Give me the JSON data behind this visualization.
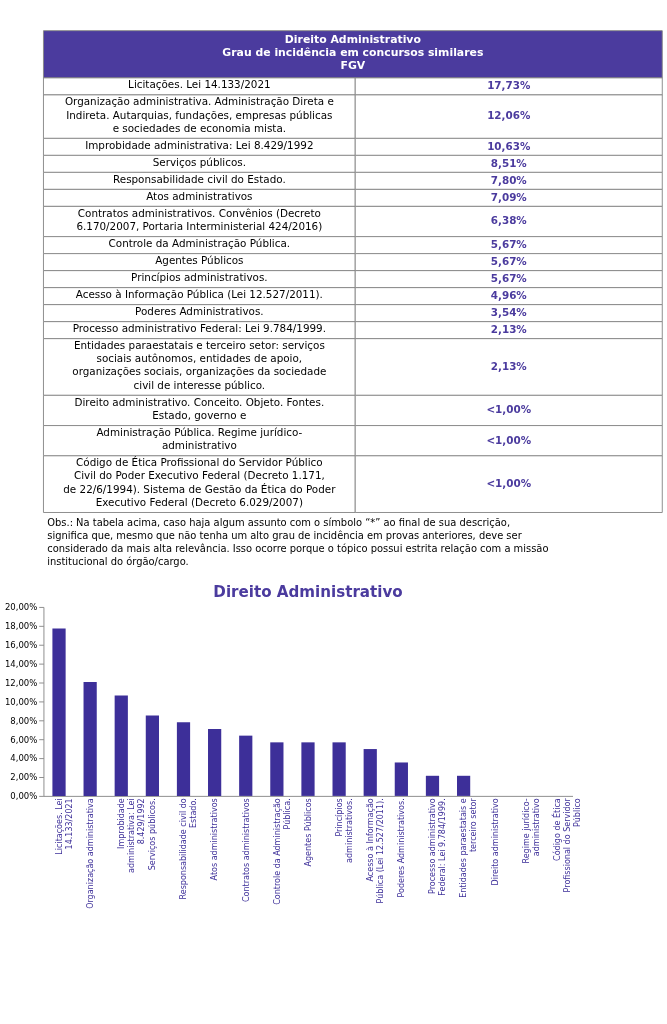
{
  "chart_data": [
    {
      "type": "other",
      "title": "Direito Administrativo",
      "subtitle": "Grau de incidência em concursos similares\nFGV",
      "color": "#4b3b9e",
      "categories": [
        "Licitações. Lei 14.133/2021",
        "Organização administrativa. Administração Direta e Indireta. Autarquias, fundações, empresas públicas e sociedades de economia mista.",
        "Improbidade administrativa: Lei 8.429/1992",
        "Serviços públicos.",
        "Responsabilidade civil do Estado.",
        "Atos administrativos",
        "Contratos administrativos. Convênios (Decreto 6.170/2007, Portaria Interministerial 424/2016)",
        "Controle da Administração Pública.",
        "Agentes Públicos",
        "Princípios administrativos.",
        "Acesso à Informação Pública (Lei 12.527/2011).",
        "Poderes Administrativos.",
        "Processo administrativo Federal: Lei 9.784/1999.",
        "Entidades paraestatais e terceiro setor: serviços sociais autônomos, entidades de apoio, organizações sociais, organizações da sociedade civil de interesse público.",
        "Direito administrativo. Conceito. Objeto. Fontes. Estado, governo e",
        "Administração Pública. Regime jurídico-administrativo",
        "Código de Ética Profissional do Servidor Público Civil do Poder Executivo Federal (Decreto 1.171, de 22/6/1994). Sistema de Gestão da Ética do Poder Executivo Federal (Decreto 6.029/2007)"
      ],
      "value_labels": [
        "17,73%",
        "12,06%",
        "10,63%",
        "8,51%",
        "7,80%",
        "7,09%",
        "6,38%",
        "5,67%",
        "5,67%",
        "5,67%",
        "4,96%",
        "3,54%",
        "2,13%",
        "2,13%",
        "<1,00%",
        "<1,00%",
        "<1,00%"
      ],
      "annotations": [
        "Obs.: Na tabela acima, caso haja algum assunto com o símbolo “*” ao final de sua descrição, significa que, mesmo que não tenha um alto grau de incidência em provas anteriores, deve ser considerado da mais alta relevância. Isso ocorre porque o tópico possui estrita relação com a missão institucional do órgão/cargo."
      ]
    },
    {
      "type": "bar",
      "title": "Direito Administrativo",
      "color": "#3d2f99",
      "categories": [
        "Licitações. Lei 14.133/2021",
        "Organização administrativa",
        "Improbidade administrativa: Lei 8.429/1992",
        "Serviços públicos.",
        "Responsabilidade civil do Estado.",
        "Atos administrativos",
        "Contratos administrativos",
        "Controle da Administração Pública.",
        "Agentes Públicos",
        "Princípios administrativos.",
        "Acesso à Informação Pública (Lei 12.527/2011).",
        "Poderes Administrativos.",
        "Processo administrativo Federal: Lei 9.784/1999.",
        "Entidades paraestatais e terceiro setor",
        "Direito administrativo",
        "Regime jurídico-administrativo",
        "Código de Ética Profissional do Servidor Público"
      ],
      "values": [
        17.73,
        12.06,
        10.63,
        8.51,
        7.8,
        7.09,
        6.38,
        5.67,
        5.67,
        5.67,
        4.96,
        3.54,
        2.13,
        2.13,
        0,
        0,
        0
      ],
      "ylim": [
        0,
        20
      ],
      "yticks": [
        {
          "value": 0,
          "label": "0,00%"
        },
        {
          "value": 2,
          "label": "2,00%"
        },
        {
          "value": 4,
          "label": "4,00%"
        },
        {
          "value": 6,
          "label": "6,00%"
        },
        {
          "value": 8,
          "label": "8,00%"
        },
        {
          "value": 10,
          "label": "10,00%"
        },
        {
          "value": 12,
          "label": "12,00%"
        },
        {
          "value": 14,
          "label": "14,00%"
        },
        {
          "value": 16,
          "label": "16,00%"
        },
        {
          "value": 18,
          "label": "18,00%"
        },
        {
          "value": 20,
          "label": "20,00%"
        }
      ],
      "grid": false
    }
  ]
}
